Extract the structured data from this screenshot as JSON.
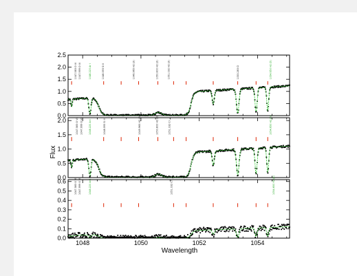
{
  "chart_data": {
    "type": "scatter",
    "xlabel": "Wavelength",
    "ylabel": "Flux",
    "xlim": [
      1047.5,
      1055.1
    ],
    "x_ticks": [
      "1048",
      "1050",
      "1052",
      "1054"
    ],
    "x_tick_values": [
      1048,
      1050,
      1052,
      1054
    ],
    "colors": {
      "points": "#000000",
      "model": "#33cc33",
      "marker": "#dd2200",
      "label_dark": "#222222",
      "label_green": "#22aa22"
    },
    "panels": [
      {
        "ylim": [
          0,
          2.5
        ],
        "y_ticks": [
          "0.0",
          "0.5",
          "1.0",
          "1.5",
          "2.0",
          "2.5"
        ],
        "y_tick_values": [
          0,
          0.5,
          1.0,
          1.5,
          2.0,
          2.5
        ],
        "markers": [
          1047.62,
          1048.72,
          1049.32,
          1049.92,
          1050.58,
          1051.12,
          1051.55,
          1052.48,
          1053.32,
          1053.95,
          1054.35
        ],
        "annotations": [
          {
            "x": 1047.75,
            "text": "1047.583 O VI",
            "color": "label_dark"
          },
          {
            "x": 1047.9,
            "text": "1047.999 O VI",
            "color": "label_dark"
          },
          {
            "x": 1048.25,
            "text": "1048.220 Ar I",
            "color": "label_green"
          },
          {
            "x": 1048.7,
            "text": "1048.593 Si II",
            "color": "label_dark"
          },
          {
            "x": 1049.75,
            "text": "1049.965 H2 (3)",
            "color": "label_dark"
          },
          {
            "x": 1050.55,
            "text": "1050.800 H2 (3)",
            "color": "label_dark"
          },
          {
            "x": 1050.95,
            "text": "1051.032 H2 (3)",
            "color": "label_dark"
          },
          {
            "x": 1053.32,
            "text": "1053.283 CI",
            "color": "label_dark"
          },
          {
            "x": 1054.45,
            "text": "1054.650 H2 (5)",
            "color": "label_green"
          }
        ]
      },
      {
        "ylim": [
          0,
          2.1
        ],
        "y_ticks": [
          "0.0",
          "0.5",
          "1.0",
          "1.5",
          "2.0"
        ],
        "y_tick_values": [
          0,
          0.5,
          1.0,
          1.5,
          2.0
        ],
        "markers": [
          1047.62,
          1048.72,
          1049.32,
          1049.92,
          1050.58,
          1051.12,
          1051.55,
          1052.48,
          1053.32,
          1053.95,
          1054.35
        ],
        "annotations": [
          {
            "x": 1047.8,
            "text": "1047.583 O VI",
            "color": "label_dark"
          },
          {
            "x": 1047.95,
            "text": "1047.999 O VI",
            "color": "label_dark"
          },
          {
            "x": 1048.25,
            "text": "1048.220 Ar I",
            "color": "label_green"
          },
          {
            "x": 1048.75,
            "text": "1048.593 Si II",
            "color": "label_dark"
          },
          {
            "x": 1049.95,
            "text": "1049.965 H2 (3)",
            "color": "label_dark"
          },
          {
            "x": 1050.55,
            "text": "1050.800 H2 (3)",
            "color": "label_dark"
          },
          {
            "x": 1050.98,
            "text": "1051.032 CI",
            "color": "label_dark"
          },
          {
            "x": 1054.45,
            "text": "1054.650 H2 (5)",
            "color": "label_green"
          }
        ]
      },
      {
        "ylim": [
          0,
          0.62
        ],
        "y_ticks": [
          "0.0",
          "0.1",
          "0.2",
          "0.3",
          "0.4",
          "0.5",
          "0.6"
        ],
        "y_tick_values": [
          0,
          0.1,
          0.2,
          0.3,
          0.4,
          0.5,
          0.6
        ],
        "markers": [
          1047.62,
          1048.72,
          1049.32,
          1049.92,
          1051.12,
          1051.55,
          1052.48,
          1053.32,
          1053.95,
          1054.35
        ],
        "annotations": [
          {
            "x": 1047.75,
            "text": "1047.583 O VI",
            "color": "label_dark"
          },
          {
            "x": 1047.9,
            "text": "1047.999 O VI",
            "color": "label_dark"
          },
          {
            "x": 1048.25,
            "text": "1048.220 Ar I",
            "color": "label_green"
          },
          {
            "x": 1051.05,
            "text": "1051.032 CI",
            "color": "label_dark"
          },
          {
            "x": 1054.55,
            "text": "1054.650 H2 (5)",
            "color": "label_green"
          }
        ]
      }
    ]
  }
}
